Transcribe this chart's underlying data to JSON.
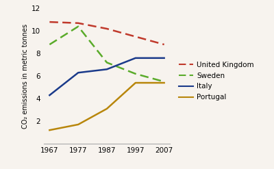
{
  "years": [
    1967,
    1977,
    1987,
    1997,
    2007
  ],
  "united_kingdom": [
    10.8,
    10.7,
    10.2,
    9.5,
    8.8
  ],
  "sweden": [
    8.8,
    10.4,
    7.2,
    6.2,
    5.5
  ],
  "italy": [
    4.3,
    6.3,
    6.6,
    7.6,
    7.6
  ],
  "portugal": [
    1.2,
    1.7,
    3.1,
    5.4,
    5.4
  ],
  "colors": {
    "united_kingdom": "#c0392b",
    "sweden": "#5aab2a",
    "italy": "#1a3a8a",
    "portugal": "#b8860b"
  },
  "ylabel": "CO₂ emissions in metric tonnes",
  "ylim": [
    0,
    12
  ],
  "yticks": [
    0,
    2,
    4,
    6,
    8,
    10,
    12
  ],
  "background_color": "#f7f3ee",
  "legend_labels": [
    "United Kingdom",
    "Sweden",
    "Italy",
    "Portugal"
  ]
}
